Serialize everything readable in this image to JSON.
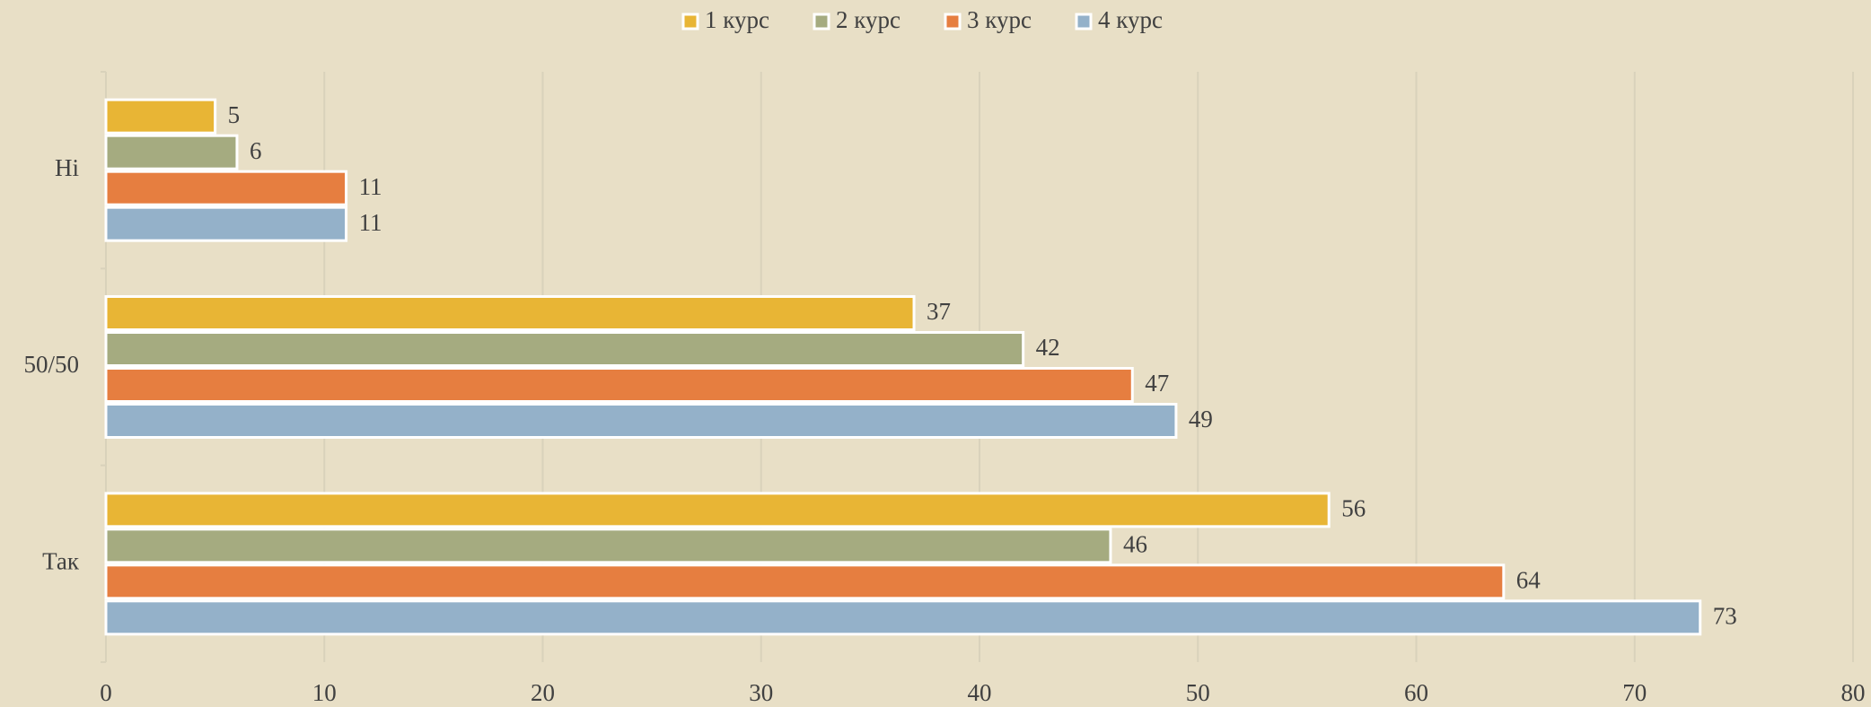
{
  "chart_data": {
    "type": "hbar",
    "categories": [
      "Ні",
      "50/50",
      "Так"
    ],
    "series": [
      {
        "name": "1 курс",
        "color": "#e8b535",
        "values": [
          5,
          37,
          56
        ]
      },
      {
        "name": "2 курс",
        "color": "#a5ab80",
        "values": [
          6,
          42,
          46
        ]
      },
      {
        "name": "3 курс",
        "color": "#e67e40",
        "values": [
          11,
          47,
          64
        ]
      },
      {
        "name": "4 курс",
        "color": "#94b1c9",
        "values": [
          11,
          49,
          73
        ]
      }
    ],
    "xlim": [
      0,
      80
    ],
    "xticks": [
      0,
      10,
      20,
      30,
      40,
      50,
      60,
      70,
      80
    ],
    "grid": true,
    "legend": "top"
  }
}
